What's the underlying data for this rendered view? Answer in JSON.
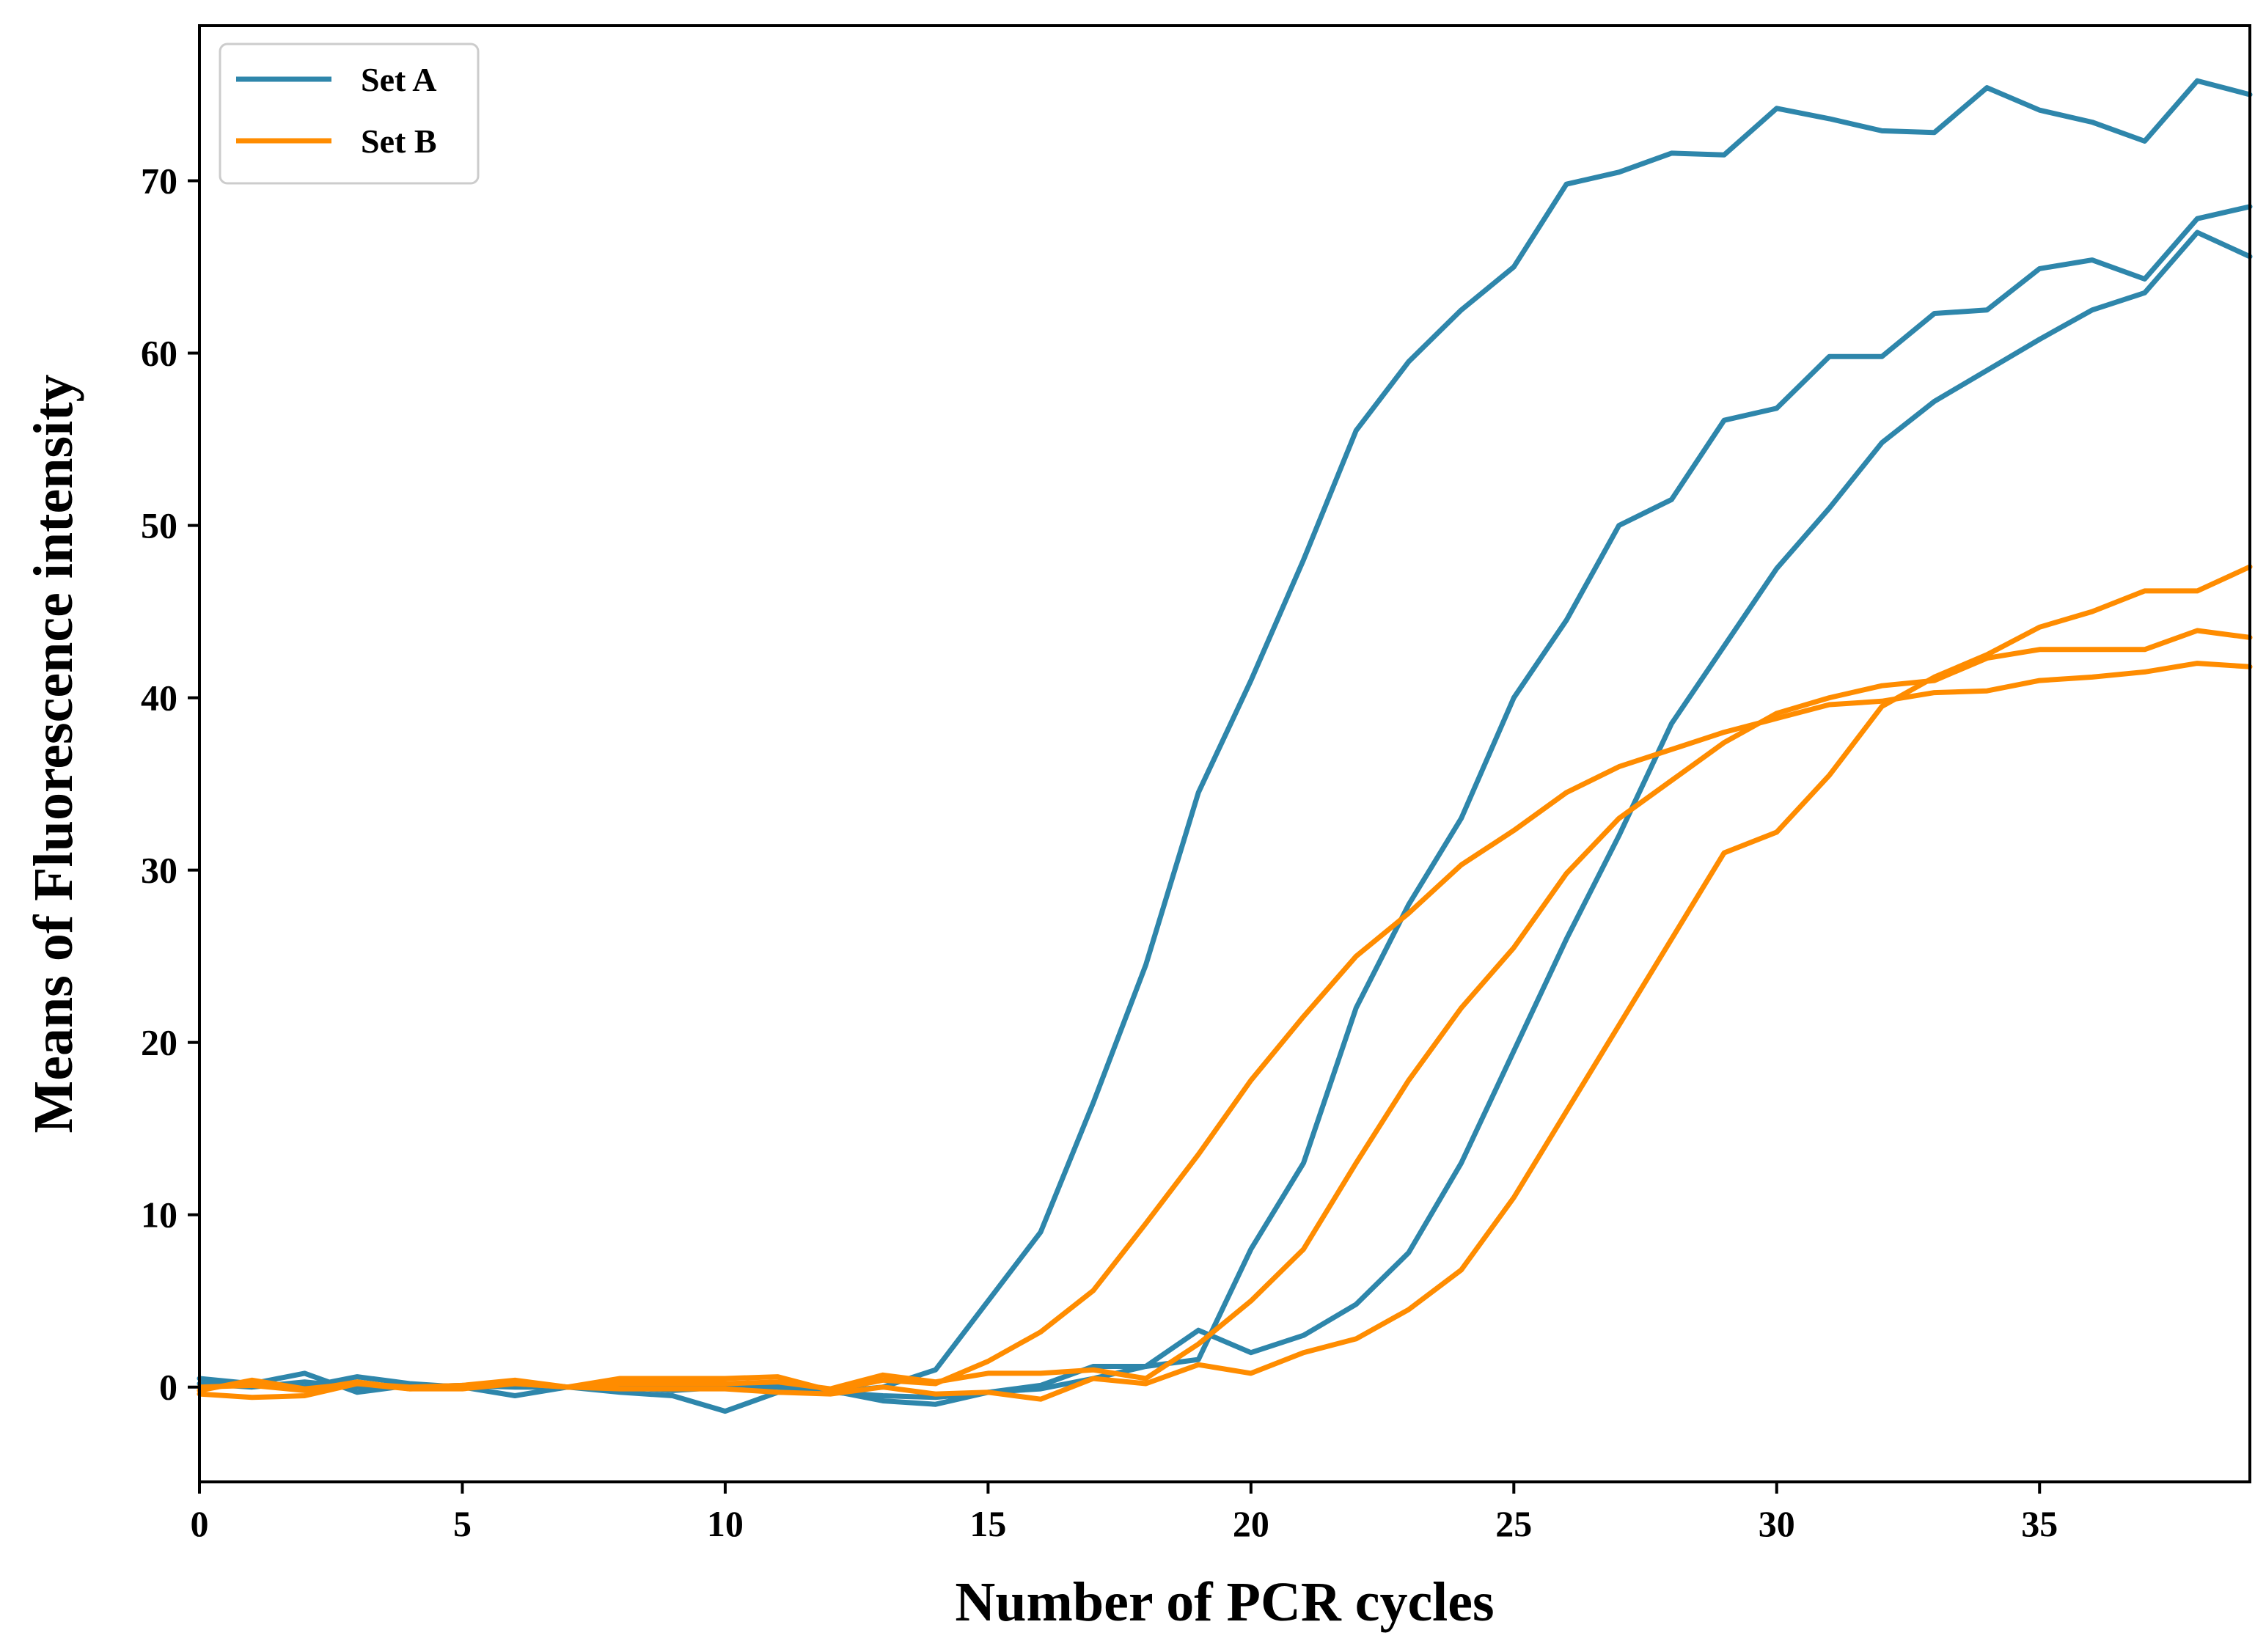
{
  "chart_data": {
    "type": "line",
    "title": "",
    "xlabel": "Number of PCR cycles",
    "ylabel": "Means of Fluorescence intensity",
    "xlim": [
      0,
      39
    ],
    "ylim": [
      -5.5,
      79
    ],
    "xticks": [
      0,
      5,
      10,
      15,
      20,
      25,
      30,
      35
    ],
    "yticks": [
      0,
      10,
      20,
      30,
      40,
      50,
      60,
      70
    ],
    "grid": false,
    "legend_position": "top-left",
    "legend": [
      {
        "label": "Set A",
        "color": "#2e86ab"
      },
      {
        "label": "Set B",
        "color": "#ff8c00"
      }
    ],
    "series": [
      {
        "name": "Set A",
        "group": "Set A",
        "color": "#2e86ab",
        "x": [
          0,
          1,
          2,
          3,
          4,
          5,
          6,
          7,
          8,
          9,
          10,
          11,
          12,
          13,
          14,
          15,
          16,
          17,
          18,
          19,
          20,
          21,
          22,
          23,
          24,
          25,
          26,
          27,
          28,
          29,
          30,
          31,
          32,
          33,
          34,
          35,
          36,
          37,
          38,
          39
        ],
        "y": [
          0.5,
          0.2,
          0.8,
          -0.3,
          0.1,
          0.0,
          0.3,
          0.0,
          0.2,
          0.0,
          0.0,
          0.1,
          -0.3,
          0.0,
          1.0,
          5.0,
          9.0,
          16.5,
          24.5,
          34.5,
          41.0,
          48.0,
          55.5,
          59.5,
          62.5,
          65.0,
          69.8,
          70.5,
          71.6,
          71.5,
          74.2,
          73.6,
          72.9,
          72.8,
          75.4,
          74.1,
          73.4,
          72.3,
          75.8,
          75.0
        ]
      },
      {
        "name": "Set A",
        "group": "Set A",
        "color": "#2e86ab",
        "x": [
          0,
          1,
          2,
          3,
          4,
          5,
          6,
          7,
          8,
          9,
          10,
          11,
          12,
          13,
          14,
          15,
          16,
          17,
          18,
          19,
          20,
          21,
          22,
          23,
          24,
          25,
          26,
          27,
          28,
          29,
          30,
          31,
          32,
          33,
          34,
          35,
          36,
          37,
          38,
          39
        ],
        "y": [
          0.0,
          0.3,
          0.0,
          0.6,
          0.2,
          0.0,
          -0.5,
          0.0,
          -0.3,
          -0.5,
          -1.4,
          -0.3,
          -0.3,
          -0.5,
          -0.6,
          -0.3,
          0.1,
          1.2,
          1.2,
          1.6,
          8.0,
          13.0,
          22.0,
          28.0,
          33.0,
          40.0,
          44.5,
          50.0,
          51.5,
          56.1,
          56.8,
          59.8,
          59.8,
          62.3,
          62.5,
          64.9,
          65.4,
          64.3,
          67.8,
          68.5
        ]
      },
      {
        "name": "Set A",
        "group": "Set A",
        "color": "#2e86ab",
        "x": [
          0,
          1,
          2,
          3,
          4,
          5,
          6,
          7,
          8,
          9,
          10,
          11,
          12,
          13,
          14,
          15,
          16,
          17,
          18,
          19,
          20,
          21,
          22,
          23,
          24,
          25,
          26,
          27,
          28,
          29,
          30,
          31,
          32,
          33,
          34,
          35,
          36,
          37,
          38,
          39
        ],
        "y": [
          0.2,
          0.0,
          0.3,
          0.0,
          0.0,
          0.1,
          0.0,
          0.0,
          0.0,
          -0.2,
          0.0,
          0.0,
          -0.2,
          -0.8,
          -1.0,
          -0.3,
          -0.1,
          0.5,
          1.2,
          3.3,
          2.0,
          3.0,
          4.8,
          7.8,
          13.0,
          19.5,
          26.0,
          32.0,
          38.5,
          43.0,
          47.5,
          51.0,
          54.8,
          57.2,
          59.0,
          60.8,
          62.5,
          63.5,
          67.0,
          65.6
        ]
      },
      {
        "name": "Set B",
        "group": "Set B",
        "color": "#ff8c00",
        "x": [
          0,
          1,
          2,
          3,
          4,
          5,
          6,
          7,
          8,
          9,
          10,
          11,
          12,
          13,
          14,
          15,
          16,
          17,
          18,
          19,
          20,
          21,
          22,
          23,
          24,
          25,
          26,
          27,
          28,
          29,
          30,
          31,
          32,
          33,
          34,
          35,
          36,
          37,
          38,
          39
        ],
        "y": [
          -0.4,
          -0.6,
          -0.5,
          0.2,
          -0.1,
          0.0,
          0.2,
          0.0,
          0.5,
          0.5,
          0.5,
          0.6,
          -0.2,
          0.4,
          0.2,
          1.5,
          3.2,
          5.6,
          9.5,
          13.5,
          17.8,
          21.5,
          25.0,
          27.5,
          30.3,
          32.3,
          34.5,
          36.0,
          37.0,
          38.0,
          38.8,
          39.6,
          39.8,
          40.3,
          40.4,
          41.0,
          41.2,
          41.5,
          42.0,
          41.8
        ]
      },
      {
        "name": "Set B",
        "group": "Set B",
        "color": "#ff8c00",
        "x": [
          0,
          1,
          2,
          3,
          4,
          5,
          6,
          7,
          8,
          9,
          10,
          11,
          12,
          13,
          14,
          15,
          16,
          17,
          18,
          19,
          20,
          21,
          22,
          23,
          24,
          25,
          26,
          27,
          28,
          29,
          30,
          31,
          32,
          33,
          34,
          35,
          36,
          37,
          38,
          39
        ],
        "y": [
          -0.2,
          0.4,
          -0.1,
          0.2,
          0.0,
          0.1,
          0.4,
          0.0,
          0.2,
          0.2,
          0.2,
          0.3,
          -0.1,
          0.7,
          0.3,
          0.8,
          0.8,
          1.0,
          0.5,
          2.5,
          5.0,
          8.0,
          13.0,
          17.8,
          22.0,
          25.5,
          29.8,
          33.0,
          35.2,
          37.4,
          39.1,
          40.0,
          40.7,
          41.0,
          42.3,
          42.8,
          42.8,
          42.8,
          43.9,
          43.5
        ]
      },
      {
        "name": "Set B",
        "group": "Set B",
        "color": "#ff8c00",
        "x": [
          0,
          1,
          2,
          3,
          4,
          5,
          6,
          7,
          8,
          9,
          10,
          11,
          12,
          13,
          14,
          15,
          16,
          17,
          18,
          19,
          20,
          21,
          22,
          23,
          24,
          25,
          26,
          27,
          28,
          29,
          30,
          31,
          32,
          33,
          34,
          35,
          36,
          37,
          38,
          39
        ],
        "y": [
          0.0,
          0.1,
          -0.2,
          0.3,
          -0.1,
          -0.1,
          0.2,
          0.0,
          -0.1,
          -0.1,
          -0.1,
          -0.3,
          -0.4,
          0.0,
          -0.4,
          -0.3,
          -0.7,
          0.5,
          0.2,
          1.3,
          0.8,
          2.0,
          2.8,
          4.5,
          6.8,
          11.0,
          16.0,
          21.0,
          26.0,
          31.0,
          32.2,
          35.5,
          39.5,
          41.2,
          42.5,
          44.1,
          45.0,
          46.2,
          46.2,
          47.6
        ]
      }
    ]
  }
}
